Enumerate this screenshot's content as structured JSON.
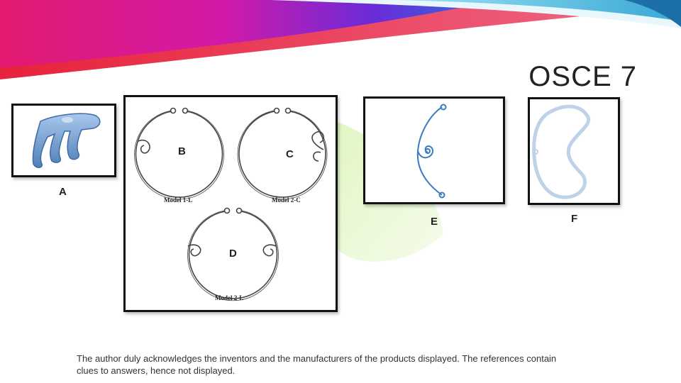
{
  "slide": {
    "title": "OSCE 7",
    "footer_text": "The author duly acknowledges the inventors and the manufacturers of the products displayed. The references contain clues to answers, hence not displayed."
  },
  "figures": {
    "a": {
      "label": "A"
    },
    "b": {
      "label": "B",
      "caption": "Model 1-L"
    },
    "c": {
      "label": "C",
      "caption": "Model 2-C"
    },
    "d": {
      "label": "D",
      "caption": "Model 2-L"
    },
    "e": {
      "label": "E"
    },
    "f": {
      "label": "F"
    }
  },
  "colors": {
    "banner_magenta": "#e8198b",
    "banner_cyan": "#1aa8d8",
    "frame_border": "#111111",
    "lens_blue": "#5a8fc8",
    "ring_gray": "#555555"
  }
}
